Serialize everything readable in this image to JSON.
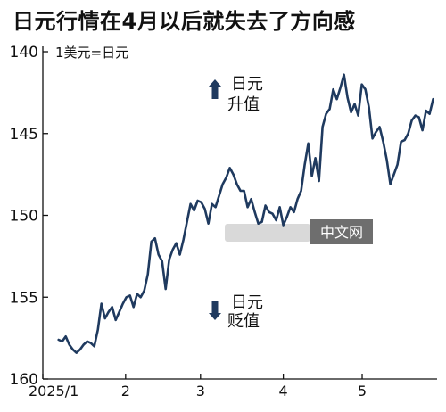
{
  "chart_data": {
    "type": "line",
    "title": "日元行情在4月以后就失去了方向感",
    "unit_label": "1美元=日元",
    "y_axis": {
      "ticks": [
        140,
        145,
        150,
        155,
        160
      ],
      "range": [
        140,
        160
      ],
      "inverted": true
    },
    "x_axis": {
      "ticks": [
        {
          "label": "2025/1",
          "pos": 0
        },
        {
          "label": "2",
          "pos": 21
        },
        {
          "label": "3",
          "pos": 40
        },
        {
          "label": "4",
          "pos": 61
        },
        {
          "label": "5",
          "pos": 81
        }
      ],
      "range": [
        0,
        100
      ]
    },
    "grid": false,
    "line_color": "#1f3a5f",
    "series": [
      {
        "values": [
          157.6,
          157.7,
          157.4,
          157.9,
          158.2,
          158.4,
          158.2,
          157.9,
          157.7,
          157.8,
          158.0,
          157.0,
          155.4,
          156.3,
          155.9,
          155.6,
          156.4,
          155.9,
          155.4,
          155.0,
          154.9,
          155.6,
          154.8,
          155.0,
          154.6,
          153.6,
          151.6,
          151.4,
          152.4,
          152.8,
          154.5,
          152.7,
          152.1,
          151.7,
          152.4,
          151.5,
          150.4,
          149.3,
          149.7,
          149.1,
          149.2,
          149.6,
          150.5,
          149.3,
          149.5,
          148.8,
          148.1,
          147.7,
          147.1,
          147.5,
          148.1,
          148.5,
          148.5,
          149.5,
          149.0,
          149.8,
          150.5,
          150.4,
          149.4,
          149.8,
          149.9,
          150.3,
          149.5,
          150.6,
          150.1,
          149.5,
          149.8,
          149.0,
          148.5,
          146.9,
          145.6,
          147.6,
          146.5,
          147.9,
          144.6,
          143.8,
          143.5,
          142.3,
          142.9,
          142.2,
          141.4,
          142.8,
          143.7,
          143.2,
          143.9,
          142.0,
          142.3,
          143.4,
          145.3,
          144.9,
          144.6,
          145.5,
          146.6,
          148.1,
          147.5,
          146.9,
          145.5,
          145.4,
          145.0,
          144.2,
          143.9,
          144.0,
          144.8,
          143.6,
          143.8,
          142.9
        ]
      }
    ],
    "annotations": [
      {
        "text_line1": "日元",
        "text_line2": "升值",
        "arrow": "up"
      },
      {
        "text_line1": "日元",
        "text_line2": "贬值",
        "arrow": "down"
      }
    ]
  },
  "watermark": {
    "text": "中文网"
  }
}
